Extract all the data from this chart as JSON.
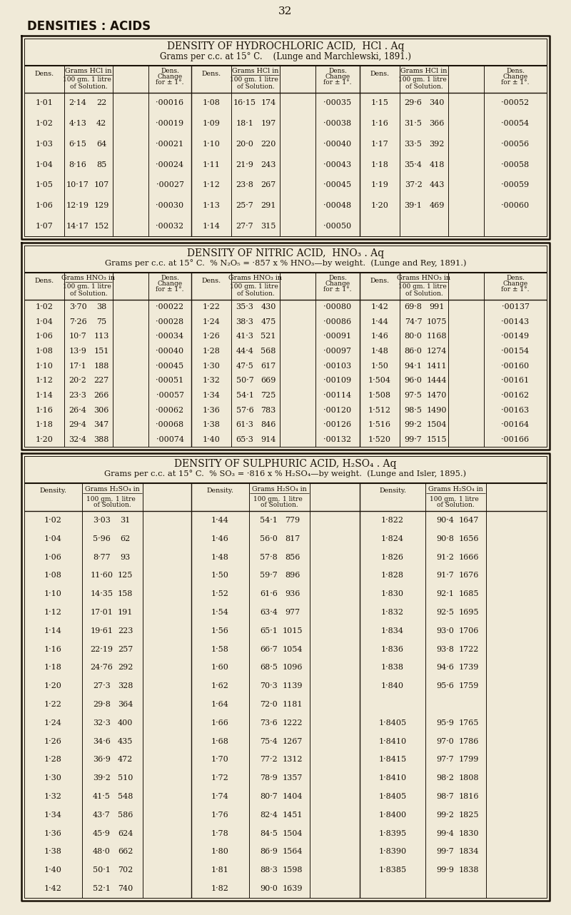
{
  "bg_color": "#f0ead8",
  "page_number": "32",
  "section_title": "DENSITIES : ACIDS",
  "hcl_title": "DENSITY OF HYDROCHLORIC ACID,  HCl . Aq",
  "hcl_subtitle": "Grams per c.c. at 15° C.    (Lunge and Marchlewski, 1891.)",
  "hcl_data": [
    [
      "1·01",
      "2·14",
      "22",
      "·00016",
      "1·08",
      "16·15",
      "174",
      "·00035",
      "1·15",
      "29·6",
      "340",
      "·00052"
    ],
    [
      "1·02",
      "4·13",
      "42",
      "·00019",
      "1·09",
      "18·1",
      "197",
      "·00038",
      "1·16",
      "31·5",
      "366",
      "·00054"
    ],
    [
      "1·03",
      "6·15",
      "64",
      "·00021",
      "1·10",
      "20·0",
      "220",
      "·00040",
      "1·17",
      "33·5",
      "392",
      "·00056"
    ],
    [
      "1·04",
      "8·16",
      "85",
      "·00024",
      "1·11",
      "21·9",
      "243",
      "·00043",
      "1·18",
      "35·4",
      "418",
      "·00058"
    ],
    [
      "1·05",
      "10·17",
      "107",
      "·00027",
      "1·12",
      "23·8",
      "267",
      "·00045",
      "1·19",
      "37·2",
      "443",
      "·00059"
    ],
    [
      "1·06",
      "12·19",
      "129",
      "·00030",
      "1·13",
      "25·7",
      "291",
      "·00048",
      "1·20",
      "39·1",
      "469",
      "·00060"
    ],
    [
      "1·07",
      "14·17",
      "152",
      "·00032",
      "1·14",
      "27·7",
      "315",
      "·00050",
      "",
      "",
      "",
      ""
    ]
  ],
  "hno3_title": "DENSITY OF NITRIC ACID,  HNO₃ . Aq",
  "hno3_subtitle": "Grams per c.c. at 15° C.  % N₂O₅ = ·857 x % HNO₃—by weight.  (Lunge and Rey, 1891.)",
  "hno3_data": [
    [
      "1·02",
      "3·70",
      "38",
      "·00022",
      "1·22",
      "35·3",
      "430",
      "·00080",
      "1·42",
      "69·8",
      "991",
      "·00137"
    ],
    [
      "1·04",
      "7·26",
      "75",
      "·00028",
      "1·24",
      "38·3",
      "475",
      "·00086",
      "1·44",
      "74·7",
      "1075",
      "·00143"
    ],
    [
      "1·06",
      "10·7",
      "113",
      "·00034",
      "1·26",
      "41·3",
      "521",
      "·00091",
      "1·46",
      "80·0",
      "1168",
      "·00149"
    ],
    [
      "1·08",
      "13·9",
      "151",
      "·00040",
      "1·28",
      "44·4",
      "568",
      "·00097",
      "1·48",
      "86·0",
      "1274",
      "·00154"
    ],
    [
      "1·10",
      "17·1",
      "188",
      "·00045",
      "1·30",
      "47·5",
      "617",
      "·00103",
      "1·50",
      "94·1",
      "1411",
      "·00160"
    ],
    [
      "1·12",
      "20·2",
      "227",
      "·00051",
      "1·32",
      "50·7",
      "669",
      "·00109",
      "1·504",
      "96·0",
      "1444",
      "·00161"
    ],
    [
      "1·14",
      "23·3",
      "266",
      "·00057",
      "1·34",
      "54·1",
      "725",
      "·00114",
      "1·508",
      "97·5",
      "1470",
      "·00162"
    ],
    [
      "1·16",
      "26·4",
      "306",
      "·00062",
      "1·36",
      "57·6",
      "783",
      "·00120",
      "1·512",
      "98·5",
      "1490",
      "·00163"
    ],
    [
      "1·18",
      "29·4",
      "347",
      "·00068",
      "1·38",
      "61·3",
      "846",
      "·00126",
      "1·516",
      "99·2",
      "1504",
      "·00164"
    ],
    [
      "1·20",
      "32·4",
      "388",
      "·00074",
      "1·40",
      "65·3",
      "914",
      "·00132",
      "1·520",
      "99·7",
      "1515",
      "·00166"
    ]
  ],
  "h2so4_title": "DENSITY OF SULPHURIC ACID, H₂SO₄ . Aq",
  "h2so4_subtitle": "Grams per c.c. at 15° C.  % SO₃ = ·816 x % H₂SO₄—by weight.  (Lunge and Isler, 1895.)",
  "h2so4_data": [
    [
      "1·02",
      "3·03",
      "31",
      "1·44",
      "54·1",
      "779",
      "1·822",
      "90·4",
      "1647"
    ],
    [
      "1·04",
      "5·96",
      "62",
      "1·46",
      "56·0",
      "817",
      "1·824",
      "90·8",
      "1656"
    ],
    [
      "1·06",
      "8·77",
      "93",
      "1·48",
      "57·8",
      "856",
      "1·826",
      "91·2",
      "1666"
    ],
    [
      "1·08",
      "11·60",
      "125",
      "1·50",
      "59·7",
      "896",
      "1·828",
      "91·7",
      "1676"
    ],
    [
      "1·10",
      "14·35",
      "158",
      "1·52",
      "61·6",
      "936",
      "1·830",
      "92·1",
      "1685"
    ],
    [
      "1·12",
      "17·01",
      "191",
      "1·54",
      "63·4",
      "977",
      "1·832",
      "92·5",
      "1695"
    ],
    [
      "1·14",
      "19·61",
      "223",
      "1·56",
      "65·1",
      "1015",
      "1·834",
      "93·0",
      "1706"
    ],
    [
      "1·16",
      "22·19",
      "257",
      "1·58",
      "66·7",
      "1054",
      "1·836",
      "93·8",
      "1722"
    ],
    [
      "1·18",
      "24·76",
      "292",
      "1·60",
      "68·5",
      "1096",
      "1·838",
      "94·6",
      "1739"
    ],
    [
      "1·20",
      "27·3",
      "328",
      "1·62",
      "70·3",
      "1139",
      "1·840",
      "95·6",
      "1759"
    ],
    [
      "1·22",
      "29·8",
      "364",
      "1·64",
      "72·0",
      "1181",
      "",
      "",
      ""
    ],
    [
      "1·24",
      "32·3",
      "400",
      "1·66",
      "73·6",
      "1222",
      "1·8405",
      "95·9",
      "1765"
    ],
    [
      "1·26",
      "34·6",
      "435",
      "1·68",
      "75·4",
      "1267",
      "1·8410",
      "97·0",
      "1786"
    ],
    [
      "1·28",
      "36·9",
      "472",
      "1·70",
      "77·2",
      "1312",
      "1·8415",
      "97·7",
      "1799"
    ],
    [
      "1·30",
      "39·2",
      "510",
      "1·72",
      "78·9",
      "1357",
      "1·8410",
      "98·2",
      "1808"
    ],
    [
      "1·32",
      "41·5",
      "548",
      "1·74",
      "80·7",
      "1404",
      "1·8405",
      "98·7",
      "1816"
    ],
    [
      "1·34",
      "43·7",
      "586",
      "1·76",
      "82·4",
      "1451",
      "1·8400",
      "99·2",
      "1825"
    ],
    [
      "1·36",
      "45·9",
      "624",
      "1·78",
      "84·5",
      "1504",
      "1·8395",
      "99·4",
      "1830"
    ],
    [
      "1·38",
      "48·0",
      "662",
      "1·80",
      "86·9",
      "1564",
      "1·8390",
      "99·7",
      "1834"
    ],
    [
      "1·40",
      "50·1",
      "702",
      "1·81",
      "88·3",
      "1598",
      "1·8385",
      "99·9",
      "1838"
    ],
    [
      "1·42",
      "52·1",
      "740",
      "1·82",
      "90·0",
      "1639",
      "",
      "",
      ""
    ]
  ]
}
